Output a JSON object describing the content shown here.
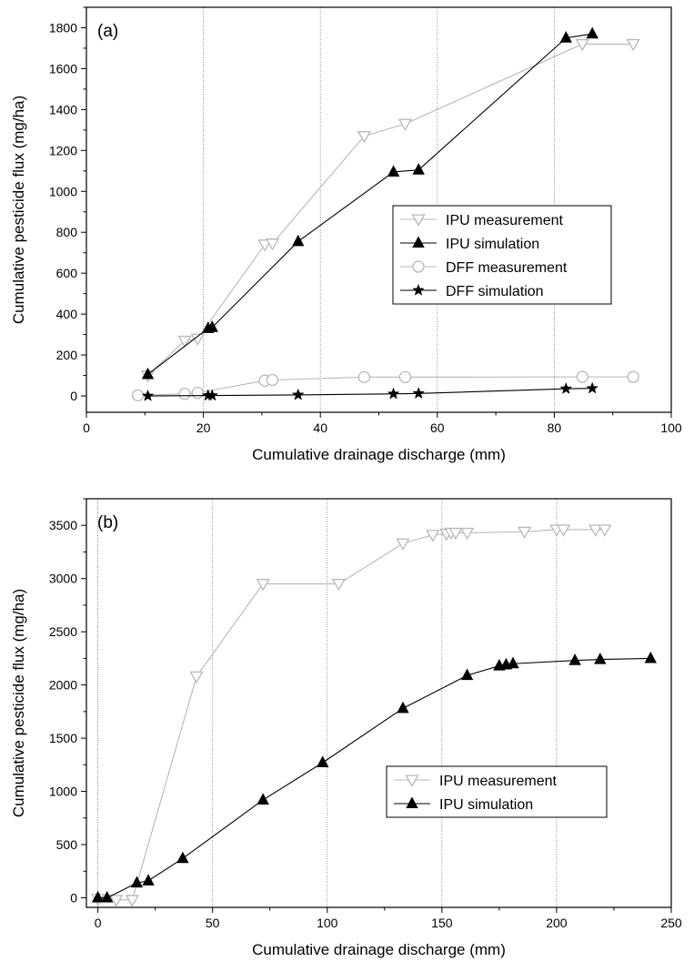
{
  "chart_data": [
    {
      "type": "line",
      "panel_label": "(a)",
      "xlabel": "Cumulative drainage discharge (mm)",
      "ylabel": "Cumulative pesticide flux (mg/ha)",
      "xlim": [
        0,
        100
      ],
      "ylim": [
        -80,
        1900
      ],
      "xticks": [
        0,
        20,
        40,
        60,
        80,
        100
      ],
      "yticks": [
        0,
        200,
        400,
        600,
        800,
        1000,
        1200,
        1400,
        1600,
        1800
      ],
      "grid": "vertical dotted lines at major x ticks",
      "legend_position": "center-right",
      "series": [
        {
          "name": "IPU measurement",
          "marker": "triangle-down-open",
          "color": "#b8b8b8",
          "x": [
            10.5,
            16.8,
            19.0,
            30.5,
            31.8,
            47.5,
            54.5,
            84.8,
            93.5
          ],
          "y": [
            100,
            270,
            280,
            740,
            745,
            1270,
            1330,
            1720,
            1720
          ]
        },
        {
          "name": "IPU simulation",
          "marker": "triangle-up-filled",
          "color": "#000000",
          "x": [
            10.5,
            20.8,
            21.5,
            36.2,
            52.5,
            56.8,
            82.0,
            86.5
          ],
          "y": [
            105,
            330,
            335,
            755,
            1095,
            1105,
            1750,
            1770
          ]
        },
        {
          "name": "DFF measurement",
          "marker": "circle-open",
          "color": "#b8b8b8",
          "x": [
            8.8,
            16.8,
            19.0,
            30.5,
            31.8,
            47.5,
            54.5,
            84.8,
            93.5
          ],
          "y": [
            3,
            10,
            15,
            75,
            78,
            92,
            92,
            93,
            93
          ]
        },
        {
          "name": "DFF simulation",
          "marker": "star-filled",
          "color": "#000000",
          "x": [
            10.5,
            20.8,
            21.5,
            36.2,
            52.5,
            56.8,
            82.0,
            86.5
          ],
          "y": [
            0,
            2,
            2,
            5,
            10,
            12,
            35,
            37
          ]
        }
      ]
    },
    {
      "type": "line",
      "panel_label": "(b)",
      "xlabel": "Cumulative drainage discharge (mm)",
      "ylabel": "Cumulative pesticide flux (mg/ha)",
      "xlim": [
        -5,
        250
      ],
      "ylim": [
        -90,
        3750
      ],
      "xticks": [
        0,
        50,
        100,
        150,
        200,
        250
      ],
      "yticks": [
        0,
        500,
        1000,
        1500,
        2000,
        2500,
        3000,
        3500
      ],
      "grid": "vertical dotted lines at major x ticks",
      "legend_position": "center-right",
      "series": [
        {
          "name": "IPU measurement",
          "marker": "triangle-down-open",
          "color": "#b8b8b8",
          "x": [
            0,
            8,
            15,
            43,
            72,
            105,
            133,
            146,
            152,
            154,
            156,
            161,
            186,
            200,
            203,
            217,
            221
          ],
          "y": [
            -10,
            -20,
            -20,
            2080,
            2950,
            2950,
            3330,
            3410,
            3420,
            3430,
            3430,
            3430,
            3440,
            3460,
            3460,
            3460,
            3460
          ]
        },
        {
          "name": "IPU simulation",
          "marker": "triangle-up-filled",
          "color": "#000000",
          "x": [
            0,
            4,
            17,
            22,
            37,
            72,
            98,
            133,
            161,
            175,
            178,
            181,
            208,
            219,
            241
          ],
          "y": [
            0,
            0,
            140,
            160,
            370,
            920,
            1270,
            1780,
            2090,
            2180,
            2190,
            2200,
            2230,
            2240,
            2250
          ]
        }
      ]
    }
  ]
}
